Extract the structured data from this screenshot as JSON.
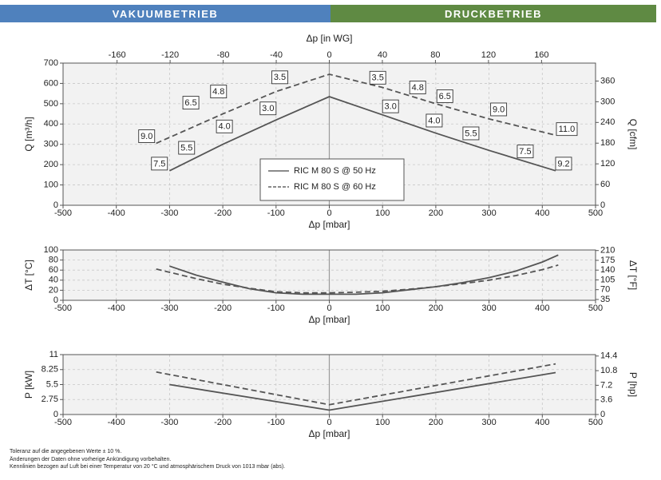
{
  "header": {
    "left": {
      "label": "VAKUUMBETRIEB",
      "color": "#4f81bd"
    },
    "right": {
      "label": "DRUCKBETRIEB",
      "color": "#5f8a43"
    }
  },
  "chart_data": [
    {
      "type": "line",
      "title": "",
      "xlabel": "Δp [mbar]",
      "ylabel": "Q [m³/h]",
      "ylabel_right": "Q [cfm]",
      "xlabel_top": "Δp [in WG]",
      "xlim": [
        -500,
        500
      ],
      "ylim": [
        0,
        700
      ],
      "xticks": [
        -500,
        -400,
        -300,
        -200,
        -100,
        0,
        100,
        200,
        300,
        400,
        500
      ],
      "yticks": [
        0,
        100,
        200,
        300,
        400,
        500,
        600,
        700
      ],
      "yticks_right": [
        0,
        60,
        120,
        180,
        240,
        300,
        360
      ],
      "ylim_right": [
        0,
        412
      ],
      "xticks_top": [
        -160,
        -120,
        -80,
        -40,
        0,
        40,
        80,
        120,
        160
      ],
      "xlim_top": [
        -200.7,
        200.7
      ],
      "grid": true,
      "legend": "center",
      "series": [
        {
          "name": "RIC M 80 S @ 50 Hz",
          "style": "solid",
          "x": [
            -300,
            -200,
            -100,
            0,
            100,
            200,
            300,
            425
          ],
          "y": [
            170,
            300,
            420,
            535,
            445,
            355,
            270,
            170
          ]
        },
        {
          "name": "RIC M 80 S @ 60 Hz",
          "style": "dashed",
          "x": [
            -325,
            -200,
            -100,
            0,
            100,
            200,
            300,
            425
          ],
          "y": [
            305,
            450,
            560,
            645,
            580,
            500,
            425,
            345
          ]
        }
      ],
      "annotations": [
        {
          "text": "9.0",
          "x": -343,
          "y": 340
        },
        {
          "text": "7.5",
          "x": -319,
          "y": 205
        },
        {
          "text": "5.5",
          "x": -268,
          "y": 283
        },
        {
          "text": "6.5",
          "x": -260,
          "y": 505
        },
        {
          "text": "4.8",
          "x": -208,
          "y": 560
        },
        {
          "text": "4.0",
          "x": -197,
          "y": 388
        },
        {
          "text": "3.0",
          "x": -115,
          "y": 477
        },
        {
          "text": "3.5",
          "x": -93,
          "y": 630
        },
        {
          "text": "3.5",
          "x": 91,
          "y": 628
        },
        {
          "text": "3.0",
          "x": 115,
          "y": 487
        },
        {
          "text": "4.8",
          "x": 166,
          "y": 580
        },
        {
          "text": "6.5",
          "x": 217,
          "y": 537
        },
        {
          "text": "4.0",
          "x": 197,
          "y": 417
        },
        {
          "text": "9.0",
          "x": 318,
          "y": 472
        },
        {
          "text": "5.5",
          "x": 266,
          "y": 354
        },
        {
          "text": "11.0",
          "x": 446,
          "y": 375
        },
        {
          "text": "7.5",
          "x": 368,
          "y": 265
        },
        {
          "text": "9.2",
          "x": 440,
          "y": 205
        }
      ]
    },
    {
      "type": "line",
      "title": "",
      "xlabel": "Δp [mbar]",
      "ylabel": "ΔT [°C]",
      "ylabel_right": "ΔT [°F]",
      "xlim": [
        -500,
        500
      ],
      "ylim": [
        0,
        100
      ],
      "xticks": [
        -500,
        -400,
        -300,
        -200,
        -100,
        0,
        100,
        200,
        300,
        400,
        500
      ],
      "yticks": [
        0,
        20,
        40,
        60,
        80,
        100
      ],
      "yticks_right": [
        35,
        70,
        105,
        140,
        175,
        210
      ],
      "ylim_right": [
        32,
        212
      ],
      "grid": true,
      "series": [
        {
          "name": "RIC M 80 S @ 50 Hz",
          "style": "solid",
          "x": [
            -300,
            -250,
            -200,
            -150,
            -100,
            -50,
            0,
            50,
            100,
            150,
            200,
            250,
            300,
            350,
            400,
            430
          ],
          "y": [
            68,
            50,
            36,
            23,
            15,
            12,
            12,
            12,
            15,
            21,
            27,
            35,
            45,
            58,
            76,
            90
          ]
        },
        {
          "name": "RIC M 80 S @ 60 Hz",
          "style": "dashed",
          "x": [
            -325,
            -250,
            -200,
            -150,
            -100,
            -50,
            0,
            50,
            100,
            150,
            200,
            250,
            300,
            350,
            400,
            430
          ],
          "y": [
            62,
            43,
            32,
            24,
            17,
            15,
            15,
            16,
            18,
            22,
            27,
            33,
            40,
            49,
            61,
            70
          ]
        }
      ]
    },
    {
      "type": "line",
      "title": "",
      "xlabel": "Δp [mbar]",
      "ylabel": "P [kW]",
      "ylabel_right": "P [hp]",
      "xlim": [
        -500,
        500
      ],
      "ylim": [
        0,
        11
      ],
      "xticks": [
        -500,
        -400,
        -300,
        -200,
        -100,
        0,
        100,
        200,
        300,
        400,
        500
      ],
      "yticks": [
        0,
        2.75,
        5.5,
        8.25,
        11
      ],
      "ytick_labels": [
        "0",
        "2.75",
        "5.5",
        "8.25",
        "11"
      ],
      "yticks_right": [
        0,
        3.6,
        7.2,
        10.8,
        14.4
      ],
      "ylim_right": [
        0,
        14.75
      ],
      "grid": true,
      "series": [
        {
          "name": "RIC M 80 S @ 50 Hz",
          "style": "solid",
          "x": [
            -300,
            0,
            425
          ],
          "y": [
            5.5,
            0.8,
            7.7
          ]
        },
        {
          "name": "RIC M 80 S @ 60 Hz",
          "style": "dashed",
          "x": [
            -325,
            0,
            425
          ],
          "y": [
            7.8,
            1.8,
            9.3
          ]
        }
      ]
    }
  ],
  "footer": {
    "line1": "Toleranz auf die angegebenen Werte ± 10 %.",
    "line2": "Änderungen der Daten ohne vorherige Ankündigung vorbehalten.",
    "line3": "Kennlinien bezogen auf Luft bei einer Temperatur von 20 °C und atmosphärischem Druck von 1013 mbar (abs)."
  }
}
